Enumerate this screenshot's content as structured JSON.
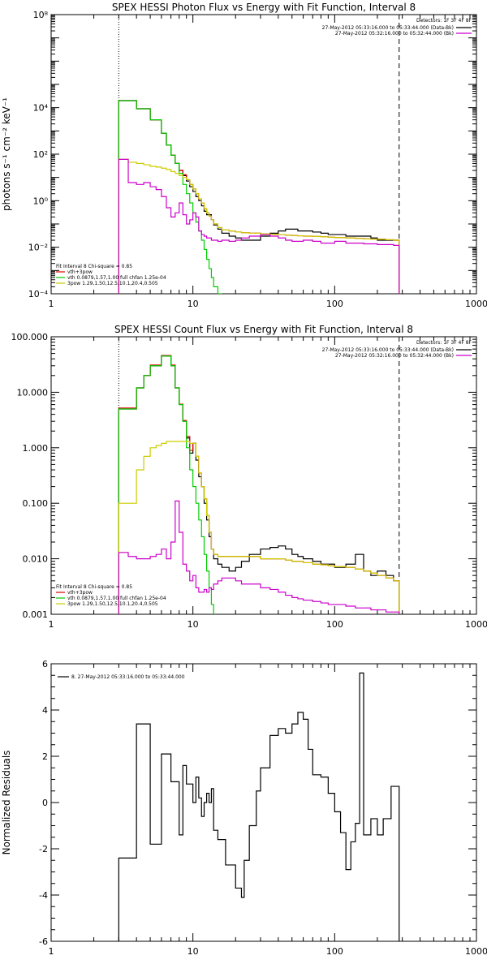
{
  "chart_data": [
    {
      "type": "line",
      "title": "SPEX HESSI Photon Flux vs Energy with Fit Function, Interval 8",
      "ylabel": "photons s⁻¹ cm⁻² keV⁻¹",
      "xlabel": "",
      "xscale": "log",
      "yscale": "log",
      "xlim": [
        1,
        1000
      ],
      "ylim": [
        0.0001,
        100000000
      ],
      "x_ticks": [
        1,
        10,
        100,
        1000
      ],
      "x_tick_labels": [
        "1",
        "10",
        "100",
        "1000"
      ],
      "y_ticks": [
        0.0001,
        0.01,
        1,
        100,
        10000,
        100000000
      ],
      "y_tick_labels": [
        "10⁻⁴",
        "10⁻²",
        "10⁰",
        "10²",
        "10⁴",
        "10⁸"
      ],
      "vlines": [
        {
          "x": 3,
          "style": "dotted"
        },
        {
          "x": 285,
          "style": "dashed"
        }
      ],
      "detectors_label": "Detectors: 1F 3F 4F 8F",
      "legend_top": [
        {
          "text": "27-May-2012 05:33:16.000 to 05:33:44.000 (Data-Bk)",
          "color": "#000000"
        },
        {
          "text": "27-May-2012 05:32:16.000 to 05:32:44.000 (Bk)",
          "color": "#cc00cc"
        }
      ],
      "legend_bottom_title": "Fit Interval 8   Chi-square = 0.85",
      "legend_bottom": [
        {
          "text": "vth+3pow",
          "color": "#dd0000"
        },
        {
          "text": "vth 0.0879,1.57,1.00  full chfan 1.25e-04",
          "color": "#00cc00"
        },
        {
          "text": "3pow 1.29,1.50,12.5,10.1,20.4,0.505",
          "color": "#cccc00"
        }
      ],
      "edges": [
        3.0,
        3.5,
        4.0,
        4.5,
        5.0,
        5.5,
        6.0,
        6.5,
        7.0,
        7.5,
        8.0,
        8.5,
        9.0,
        9.5,
        10.0,
        10.5,
        11.0,
        11.5,
        12.0,
        12.5,
        13.0,
        13.5,
        14.0,
        15.0,
        16.0,
        18.0,
        20.0,
        22.0,
        25.0,
        30.0,
        35.0,
        40.0,
        45.0,
        50.0,
        55.0,
        60.0,
        70.0,
        80.0,
        90.0,
        100.0,
        120.0,
        140.0,
        160.0,
        180.0,
        200.0,
        230.0,
        260.0,
        285.0
      ],
      "series": [
        {
          "color": "#000000",
          "values": [
            20000,
            20000,
            9000,
            9000,
            3000,
            3000,
            800,
            250,
            90,
            40,
            20,
            12,
            7,
            4,
            2.5,
            1.5,
            1.0,
            0.6,
            0.35,
            0.25,
            0.25,
            0.15,
            0.09,
            0.06,
            0.04,
            0.03,
            0.025,
            0.02,
            0.02,
            0.03,
            0.04,
            0.05,
            0.06,
            0.06,
            0.05,
            0.05,
            0.045,
            0.04,
            0.035,
            0.035,
            0.03,
            0.03,
            0.03,
            0.025,
            0.02,
            0.02,
            0.02
          ]
        },
        {
          "color": "#dd0000",
          "values": [
            20000,
            20000,
            9000,
            9000,
            3000,
            3000,
            800,
            250,
            90,
            40,
            20,
            13,
            8,
            5,
            3.2,
            2,
            1.2,
            0.8,
            0.45,
            0.3,
            0.22,
            0.15,
            0.1,
            0.07,
            0.055,
            0.05,
            0.045,
            0.042,
            0.04,
            0.038,
            0.036,
            0.035,
            0.033,
            0.032,
            0.031,
            0.03,
            0.029,
            0.028,
            0.027,
            0.026,
            0.025,
            0.024,
            0.023,
            0.022,
            0.022,
            0.021,
            0.02
          ]
        },
        {
          "color": "#00cc00",
          "values": [
            20000,
            20000,
            9000,
            9000,
            3000,
            3000,
            800,
            250,
            90,
            40,
            15,
            5,
            2,
            0.8,
            0.3,
            0.12,
            0.05,
            0.02,
            0.008,
            0.003,
            0.0012,
            0.0005,
            0.0002,
            0.0001,
            5e-05
          ]
        },
        {
          "color": "#cccc00",
          "values": [
            60,
            45,
            40,
            35,
            30,
            28,
            25,
            22,
            18,
            15,
            12,
            10,
            8,
            5,
            3.2,
            2,
            1.2,
            0.8,
            0.45,
            0.3,
            0.22,
            0.15,
            0.1,
            0.07,
            0.055,
            0.05,
            0.045,
            0.042,
            0.04,
            0.038,
            0.036,
            0.035,
            0.033,
            0.032,
            0.031,
            0.03,
            0.029,
            0.028,
            0.027,
            0.026,
            0.025,
            0.024,
            0.023,
            0.022,
            0.022,
            0.021,
            0.02
          ]
        },
        {
          "color": "#cc00cc",
          "values": [
            60,
            6,
            5,
            6,
            4,
            3,
            1.5,
            0.5,
            0.2,
            0.3,
            0.8,
            0.25,
            0.1,
            0.15,
            0.3,
            0.2,
            0.05,
            0.035,
            0.03,
            0.025,
            0.025,
            0.02,
            0.02,
            0.018,
            0.02,
            0.018,
            0.02,
            0.025,
            0.03,
            0.035,
            0.03,
            0.025,
            0.02,
            0.018,
            0.018,
            0.02,
            0.018,
            0.015,
            0.015,
            0.018,
            0.015,
            0.015,
            0.014,
            0.014,
            0.013,
            0.013,
            0.012
          ]
        }
      ]
    },
    {
      "type": "line",
      "title": "SPEX HESSI Count Flux vs Energy with Fit Function, Interval 8",
      "xlabel": "",
      "ylabel": "",
      "xscale": "log",
      "yscale": "log",
      "xlim": [
        1,
        1000
      ],
      "ylim": [
        0.001,
        100
      ],
      "x_ticks": [
        1,
        10,
        100,
        1000
      ],
      "x_tick_labels": [
        "1",
        "10",
        "100",
        "1000"
      ],
      "y_ticks": [
        0.001,
        0.01,
        0.1,
        1,
        10,
        100
      ],
      "y_tick_labels": [
        "0.001",
        "0.010",
        "0.100",
        "1.000",
        "10.000",
        "100.000"
      ],
      "vlines": [
        {
          "x": 3,
          "style": "dotted"
        },
        {
          "x": 285,
          "style": "dashed"
        }
      ],
      "detectors_label": "Detectors: 1F 3F 4F 8F",
      "legend_top": [
        {
          "text": "27-May-2012 05:33:16.000 to 05:33:44.000 (Data-Bk)",
          "color": "#000000"
        },
        {
          "text": "27-May-2012 05:32:16.000 to 05:32:44.000 (Bk)",
          "color": "#cc00cc"
        }
      ],
      "legend_bottom_title": "Fit Interval 8   Chi-square = 0.85",
      "legend_bottom": [
        {
          "text": "vth+3pow",
          "color": "#dd0000"
        },
        {
          "text": "vth 0.0879,1.57,1.00  full chfan 1.25e-04",
          "color": "#00cc00"
        },
        {
          "text": "3pow 1.29,1.50,12.5,10.1,20.4,0.505",
          "color": "#cccc00"
        }
      ],
      "edges": [
        3.0,
        3.5,
        4.0,
        4.5,
        5.0,
        5.5,
        6.0,
        6.5,
        7.0,
        7.5,
        8.0,
        8.5,
        9.0,
        9.5,
        10.0,
        10.5,
        11.0,
        11.5,
        12.0,
        12.5,
        13.0,
        13.5,
        14.0,
        15.0,
        16.0,
        18.0,
        20.0,
        22.0,
        25.0,
        30.0,
        35.0,
        40.0,
        45.0,
        50.0,
        55.0,
        60.0,
        70.0,
        80.0,
        90.0,
        100.0,
        120.0,
        140.0,
        160.0,
        180.0,
        200.0,
        230.0,
        260.0,
        285.0
      ],
      "series": [
        {
          "color": "#000000",
          "values": [
            5,
            5,
            12,
            20,
            30,
            30,
            45,
            45,
            30,
            12,
            6,
            3,
            1.5,
            0.8,
            1.2,
            0.6,
            0.3,
            0.2,
            0.1,
            0.05,
            0.025,
            0.015,
            0.01,
            0.008,
            0.007,
            0.006,
            0.007,
            0.009,
            0.012,
            0.015,
            0.016,
            0.017,
            0.015,
            0.012,
            0.011,
            0.01,
            0.009,
            0.008,
            0.008,
            0.007,
            0.008,
            0.012,
            0.006,
            0.005,
            0.006,
            0.005,
            0.004
          ]
        },
        {
          "color": "#dd0000",
          "values": [
            5.2,
            5.2,
            12,
            20,
            31,
            31,
            46,
            46,
            31,
            12,
            6.1,
            3.1,
            1.6,
            0.9,
            1.2,
            0.7,
            0.35,
            0.2,
            0.12,
            0.06,
            0.03,
            0.015,
            0.012,
            0.011,
            0.011,
            0.011,
            0.011,
            0.011,
            0.011,
            0.01,
            0.01,
            0.01,
            0.0095,
            0.009,
            0.009,
            0.0085,
            0.008,
            0.0078,
            0.0075,
            0.0072,
            0.007,
            0.0065,
            0.006,
            0.0055,
            0.005,
            0.0045,
            0.004
          ]
        },
        {
          "color": "#00cc00",
          "values": [
            5,
            5,
            12,
            20,
            30,
            30,
            45,
            45,
            30,
            12,
            6,
            3,
            1.0,
            0.4,
            0.2,
            0.1,
            0.05,
            0.025,
            0.012,
            0.006,
            0.003,
            0.0015,
            0.0008
          ]
        },
        {
          "color": "#cccc00",
          "values": [
            0.1,
            0.1,
            0.4,
            0.7,
            1.0,
            1.1,
            1.2,
            1.3,
            1.3,
            1.3,
            1.3,
            1.3,
            1.3,
            1.2,
            1.2,
            0.7,
            0.35,
            0.2,
            0.12,
            0.06,
            0.03,
            0.015,
            0.012,
            0.011,
            0.011,
            0.011,
            0.011,
            0.011,
            0.011,
            0.01,
            0.01,
            0.01,
            0.0095,
            0.009,
            0.009,
            0.0085,
            0.008,
            0.0078,
            0.0075,
            0.0072,
            0.007,
            0.0065,
            0.006,
            0.0055,
            0.005,
            0.0045,
            0.004
          ]
        },
        {
          "color": "#cc00cc",
          "values": [
            0.013,
            0.011,
            0.01,
            0.01,
            0.011,
            0.012,
            0.015,
            0.01,
            0.02,
            0.11,
            0.03,
            0.008,
            0.006,
            0.004,
            0.005,
            0.003,
            0.0025,
            0.0025,
            0.0028,
            0.0025,
            0.003,
            0.0028,
            0.0035,
            0.004,
            0.0045,
            0.0045,
            0.004,
            0.0035,
            0.0035,
            0.003,
            0.0028,
            0.0025,
            0.0022,
            0.002,
            0.0019,
            0.0018,
            0.0017,
            0.0016,
            0.0015,
            0.0015,
            0.0014,
            0.0013,
            0.0013,
            0.0012,
            0.0012,
            0.0011,
            0.0011
          ]
        }
      ]
    },
    {
      "type": "line",
      "title": "",
      "xlabel": "",
      "ylabel": "Normalized Residuals",
      "xscale": "log",
      "yscale": "linear",
      "xlim": [
        1,
        1000
      ],
      "ylim": [
        -6,
        6
      ],
      "x_ticks": [
        1,
        10,
        100,
        1000
      ],
      "x_tick_labels": [
        "1",
        "10",
        "100",
        "1000"
      ],
      "y_ticks": [
        -6,
        -4,
        -2,
        0,
        2,
        4,
        6
      ],
      "y_tick_labels": [
        "-6",
        "-4",
        "-2",
        "0",
        "2",
        "4",
        "6"
      ],
      "legend_top": [
        {
          "text": "8. 27-May-2012 05:33:16.000 to 05:33:44.000",
          "color": "#000000"
        }
      ],
      "edges": [
        3.0,
        4.0,
        5.0,
        6.0,
        7.0,
        8.0,
        8.5,
        9.0,
        10.0,
        10.5,
        11.0,
        11.5,
        12.0,
        12.5,
        13.0,
        13.5,
        14.0,
        15.0,
        17.0,
        20.0,
        22.0,
        23.0,
        25.0,
        28.0,
        30.0,
        35.0,
        40.0,
        45.0,
        50.0,
        55.0,
        60.0,
        65.0,
        70.0,
        80.0,
        90.0,
        100.0,
        110.0,
        120.0,
        130.0,
        140.0,
        150.0,
        160.0,
        180.0,
        200.0,
        220.0,
        250.0,
        285.0
      ],
      "series": [
        {
          "color": "#000000",
          "values": [
            -2.4,
            3.4,
            -1.8,
            2.1,
            0.9,
            -1.4,
            1.6,
            0.8,
            0.0,
            1.1,
            0.2,
            -0.6,
            0.0,
            0.4,
            0.0,
            0.6,
            -1.2,
            -1.6,
            -2.7,
            -3.7,
            -4.1,
            -2.5,
            -1.0,
            0.5,
            1.5,
            2.9,
            3.2,
            3.0,
            3.4,
            3.9,
            3.6,
            2.3,
            1.2,
            1.1,
            0.4,
            -0.4,
            -1.3,
            -2.9,
            -1.7,
            -0.9,
            5.6,
            -1.4,
            -0.7,
            -1.4,
            -0.7,
            0.7
          ]
        }
      ]
    }
  ]
}
